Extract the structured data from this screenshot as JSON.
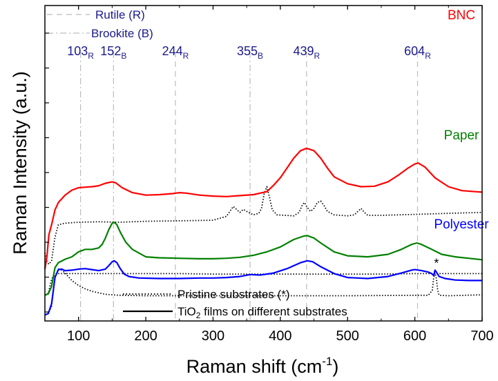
{
  "chart_data": {
    "type": "line",
    "xlabel": "Raman shift (cm",
    "xlabel_sup": "-1",
    "xlabel_close": ")",
    "ylabel": "Raman Intensity (a.u.)",
    "xlim": [
      50,
      700
    ],
    "x_ticks": [
      100,
      200,
      300,
      400,
      500,
      600,
      700
    ],
    "x_tick_labels": [
      "100",
      "200",
      "300",
      "400",
      "500",
      "600",
      "700"
    ],
    "reference_legend": [
      {
        "label": "Rutile (R)",
        "style": "dashed"
      },
      {
        "label": "Brookite (B)",
        "style": "dash-dot"
      }
    ],
    "style_legend": [
      {
        "label": "Pristine substrates (*)",
        "style": "dotted"
      },
      {
        "label_main": "TiO",
        "label_sub": "2",
        "label_rest": " films on different substrates",
        "style": "solid"
      }
    ],
    "reference_lines": [
      {
        "x": 103,
        "value": "103",
        "phase": "R",
        "style": "dash-dot"
      },
      {
        "x": 152,
        "value": "152",
        "phase": "B",
        "style": "dash-dot"
      },
      {
        "x": 244,
        "value": "244",
        "phase": "R",
        "style": "dashed"
      },
      {
        "x": 355,
        "value": "355",
        "phase": "B",
        "style": "dash-dot"
      },
      {
        "x": 439,
        "value": "439",
        "phase": "R",
        "style": "dashed"
      },
      {
        "x": 604,
        "value": "604",
        "phase": "R",
        "style": "dashed"
      }
    ],
    "groups": [
      {
        "name": "BNC",
        "color": "#ff0000",
        "film_curve": [
          [
            50,
            105
          ],
          [
            53,
            130
          ],
          [
            56,
            175
          ],
          [
            60,
            195
          ],
          [
            65,
            225
          ],
          [
            70,
            240
          ],
          [
            80,
            255
          ],
          [
            90,
            265
          ],
          [
            100,
            270
          ],
          [
            110,
            271
          ],
          [
            120,
            272
          ],
          [
            130,
            274
          ],
          [
            140,
            279
          ],
          [
            150,
            282
          ],
          [
            155,
            280
          ],
          [
            165,
            270
          ],
          [
            180,
            260
          ],
          [
            200,
            255
          ],
          [
            220,
            256
          ],
          [
            240,
            258
          ],
          [
            250,
            260
          ],
          [
            260,
            259
          ],
          [
            280,
            255
          ],
          [
            300,
            253
          ],
          [
            320,
            252
          ],
          [
            340,
            254
          ],
          [
            360,
            256
          ],
          [
            380,
            262
          ],
          [
            390,
            275
          ],
          [
            400,
            290
          ],
          [
            410,
            310
          ],
          [
            420,
            330
          ],
          [
            430,
            345
          ],
          [
            439,
            350
          ],
          [
            450,
            345
          ],
          [
            460,
            330
          ],
          [
            470,
            310
          ],
          [
            480,
            292
          ],
          [
            500,
            278
          ],
          [
            520,
            272
          ],
          [
            540,
            273
          ],
          [
            560,
            282
          ],
          [
            575,
            295
          ],
          [
            590,
            310
          ],
          [
            600,
            318
          ],
          [
            605,
            320
          ],
          [
            615,
            312
          ],
          [
            630,
            290
          ],
          [
            650,
            272
          ],
          [
            670,
            264
          ],
          [
            690,
            262
          ],
          [
            700,
            261
          ]
        ],
        "substrate_curve": [
          [
            50,
            138
          ],
          [
            53,
            120
          ],
          [
            56,
            115
          ],
          [
            60,
            122
          ],
          [
            65,
            170
          ],
          [
            70,
            195
          ],
          [
            80,
            198
          ],
          [
            100,
            200
          ],
          [
            130,
            201
          ],
          [
            160,
            200
          ],
          [
            200,
            202
          ],
          [
            250,
            203
          ],
          [
            300,
            204
          ],
          [
            320,
            212
          ],
          [
            325,
            222
          ],
          [
            330,
            232
          ],
          [
            335,
            226
          ],
          [
            340,
            220
          ],
          [
            345,
            226
          ],
          [
            350,
            222
          ],
          [
            360,
            215
          ],
          [
            368,
            218
          ],
          [
            372,
            228
          ],
          [
            376,
            258
          ],
          [
            380,
            272
          ],
          [
            384,
            250
          ],
          [
            388,
            225
          ],
          [
            395,
            215
          ],
          [
            420,
            213
          ],
          [
            428,
            220
          ],
          [
            433,
            236
          ],
          [
            436,
            240
          ],
          [
            440,
            230
          ],
          [
            445,
            222
          ],
          [
            450,
            228
          ],
          [
            455,
            240
          ],
          [
            460,
            243
          ],
          [
            465,
            234
          ],
          [
            470,
            222
          ],
          [
            480,
            215
          ],
          [
            500,
            213
          ],
          [
            510,
            215
          ],
          [
            516,
            223
          ],
          [
            520,
            228
          ],
          [
            525,
            220
          ],
          [
            530,
            214
          ],
          [
            550,
            214
          ],
          [
            600,
            216
          ],
          [
            650,
            218
          ],
          [
            700,
            220
          ]
        ]
      },
      {
        "name": "Paper",
        "color": "#008000",
        "film_curve": [
          [
            50,
            52
          ],
          [
            55,
            55
          ],
          [
            60,
            70
          ],
          [
            65,
            108
          ],
          [
            70,
            118
          ],
          [
            80,
            125
          ],
          [
            90,
            130
          ],
          [
            100,
            140
          ],
          [
            110,
            145
          ],
          [
            120,
            145
          ],
          [
            130,
            148
          ],
          [
            135,
            155
          ],
          [
            140,
            168
          ],
          [
            145,
            185
          ],
          [
            150,
            198
          ],
          [
            153,
            200
          ],
          [
            157,
            195
          ],
          [
            162,
            180
          ],
          [
            170,
            160
          ],
          [
            180,
            145
          ],
          [
            200,
            130
          ],
          [
            220,
            128
          ],
          [
            250,
            127
          ],
          [
            280,
            126
          ],
          [
            300,
            126
          ],
          [
            320,
            127
          ],
          [
            340,
            129
          ],
          [
            360,
            133
          ],
          [
            380,
            140
          ],
          [
            400,
            150
          ],
          [
            420,
            165
          ],
          [
            435,
            172
          ],
          [
            440,
            173
          ],
          [
            450,
            168
          ],
          [
            460,
            158
          ],
          [
            480,
            140
          ],
          [
            500,
            132
          ],
          [
            530,
            130
          ],
          [
            560,
            135
          ],
          [
            580,
            145
          ],
          [
            595,
            155
          ],
          [
            603,
            158
          ],
          [
            610,
            155
          ],
          [
            625,
            145
          ],
          [
            640,
            135
          ],
          [
            660,
            130
          ],
          [
            680,
            127
          ],
          [
            700,
            124
          ]
        ],
        "substrate_curve": [
          [
            50,
            52
          ],
          [
            55,
            56
          ],
          [
            60,
            85
          ],
          [
            65,
            94
          ],
          [
            70,
            96
          ],
          [
            80,
            96
          ],
          [
            100,
            96
          ],
          [
            150,
            96
          ],
          [
            200,
            96
          ],
          [
            250,
            96
          ],
          [
            300,
            95
          ],
          [
            350,
            95
          ],
          [
            400,
            95
          ],
          [
            450,
            95
          ],
          [
            500,
            95
          ],
          [
            550,
            95
          ],
          [
            600,
            96
          ],
          [
            650,
            96
          ],
          [
            700,
            96
          ]
        ]
      },
      {
        "name": "Polyester",
        "color": "#0000ff",
        "film_curve": [
          [
            50,
            12
          ],
          [
            55,
            15
          ],
          [
            60,
            35
          ],
          [
            65,
            88
          ],
          [
            70,
            104
          ],
          [
            75,
            105
          ],
          [
            80,
            102
          ],
          [
            90,
            103
          ],
          [
            100,
            105
          ],
          [
            110,
            106
          ],
          [
            120,
            104
          ],
          [
            130,
            102
          ],
          [
            140,
            105
          ],
          [
            145,
            112
          ],
          [
            150,
            120
          ],
          [
            153,
            122
          ],
          [
            157,
            118
          ],
          [
            162,
            106
          ],
          [
            168,
            95
          ],
          [
            175,
            90
          ],
          [
            190,
            87
          ],
          [
            220,
            86
          ],
          [
            250,
            86
          ],
          [
            280,
            87
          ],
          [
            300,
            87
          ],
          [
            320,
            88
          ],
          [
            340,
            90
          ],
          [
            355,
            94
          ],
          [
            370,
            93
          ],
          [
            390,
            97
          ],
          [
            410,
            106
          ],
          [
            430,
            118
          ],
          [
            440,
            122
          ],
          [
            448,
            120
          ],
          [
            460,
            110
          ],
          [
            480,
            96
          ],
          [
            500,
            88
          ],
          [
            530,
            86
          ],
          [
            560,
            90
          ],
          [
            580,
            97
          ],
          [
            595,
            103
          ],
          [
            600,
            104
          ],
          [
            610,
            102
          ],
          [
            620,
            99
          ],
          [
            625,
            96
          ],
          [
            628,
            92
          ],
          [
            630,
            103
          ],
          [
            632,
            99
          ],
          [
            636,
            90
          ],
          [
            645,
            86
          ],
          [
            660,
            83
          ],
          [
            680,
            82
          ],
          [
            700,
            82
          ]
        ],
        "substrate_curve": [
          [
            50,
            12
          ],
          [
            55,
            15
          ],
          [
            60,
            30
          ],
          [
            65,
            90
          ],
          [
            70,
            105
          ],
          [
            75,
            103
          ],
          [
            80,
            97
          ],
          [
            90,
            82
          ],
          [
            100,
            72
          ],
          [
            110,
            65
          ],
          [
            120,
            60
          ],
          [
            140,
            54
          ],
          [
            160,
            52
          ],
          [
            200,
            51
          ],
          [
            300,
            51
          ],
          [
            400,
            51
          ],
          [
            500,
            51
          ],
          [
            600,
            52
          ],
          [
            620,
            52
          ],
          [
            626,
            62
          ],
          [
            628,
            88
          ],
          [
            630,
            97
          ],
          [
            632,
            86
          ],
          [
            634,
            62
          ],
          [
            636,
            52
          ],
          [
            650,
            51
          ],
          [
            700,
            53
          ]
        ],
        "marker": "*",
        "marker_x": 630
      }
    ]
  }
}
